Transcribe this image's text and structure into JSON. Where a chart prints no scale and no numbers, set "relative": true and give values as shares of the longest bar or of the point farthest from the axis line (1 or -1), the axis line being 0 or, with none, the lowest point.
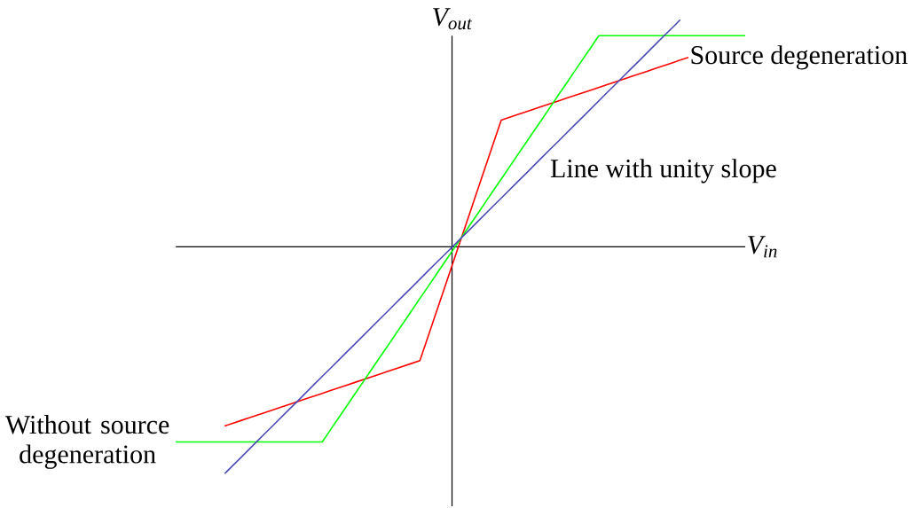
{
  "chart_data": {
    "type": "line",
    "relative": true,
    "xlabel": "V$_{in}$",
    "ylabel": "V$_{out}$",
    "categories": [
      null,
      null,
      null,
      null,
      null,
      null,
      null,
      null,
      null,
      null,
      null,
      null,
      null,
      null,
      null,
      null,
      null,
      null,
      null,
      null,
      null,
      null,
      null,
      null,
      null,
      null,
      null,
      null,
      null,
      null,
      null,
      null,
      null,
      null,
      null,
      null,
      null,
      null,
      null,
      null,
      null,
      null,
      null,
      null,
      null,
      null,
      null,
      null,
      null,
      null,
      null,
      null,
      null,
      null,
      null,
      null,
      null,
      null,
      null,
      null,
      null,
      null,
      null,
      null,
      null,
      null,
      null,
      null,
      null,
      null,
      null
    ],
    "series": [
      {
        "name": "Source degeneration",
        "color": "#ff0000",
        "values": [
          null,
          null,
          null,
          null,
          null,
          null,
          -0.79,
          -0.778,
          -0.766,
          -0.754,
          -0.742,
          -0.73,
          -0.718,
          -0.706,
          -0.694,
          -0.682,
          -0.67,
          -0.658,
          -0.646,
          -0.634,
          -0.622,
          -0.61,
          -0.598,
          -0.586,
          -0.574,
          -0.562,
          -0.55,
          -0.538,
          -0.526,
          -0.514,
          -0.502,
          -0.396,
          -0.29,
          -0.184,
          -0.078,
          0.028,
          0.134,
          0.24,
          0.346,
          0.452,
          0.558,
          0.57,
          0.582,
          0.594,
          0.606,
          0.618,
          0.63,
          0.642,
          0.654,
          0.666,
          0.678,
          0.69,
          0.702,
          0.714,
          0.726,
          0.738,
          0.75,
          0.762,
          0.774,
          0.786,
          0.798,
          0.81,
          0.822,
          0.834,
          null,
          null,
          null,
          null,
          null,
          null,
          null
        ]
      },
      {
        "name": "Without source degeneration",
        "color": "#00ff00",
        "values": [
          -0.86,
          -0.86,
          -0.86,
          -0.86,
          -0.86,
          -0.86,
          -0.86,
          -0.86,
          -0.86,
          -0.86,
          -0.86,
          -0.86,
          -0.86,
          -0.86,
          -0.86,
          -0.86,
          -0.86,
          -0.86,
          -0.86,
          -0.807,
          -0.755,
          -0.702,
          -0.649,
          -0.597,
          -0.544,
          -0.491,
          -0.439,
          -0.386,
          -0.334,
          -0.281,
          -0.228,
          -0.176,
          -0.123,
          -0.07,
          -0.018,
          0.035,
          0.088,
          0.14,
          0.193,
          0.246,
          0.298,
          0.351,
          0.404,
          0.456,
          0.509,
          0.561,
          0.614,
          0.667,
          0.719,
          0.772,
          0.825,
          0.877,
          0.93,
          0.93,
          0.93,
          0.93,
          0.93,
          0.93,
          0.93,
          0.93,
          0.93,
          0.93,
          0.93,
          0.93,
          0.93,
          0.93,
          0.93,
          0.93,
          0.93,
          0.93,
          0.93
        ]
      },
      {
        "name": "Line with unity slope",
        "color": "#4b4bb4",
        "values": [
          null,
          null,
          null,
          null,
          null,
          null,
          -1,
          -0.964,
          -0.929,
          -0.893,
          -0.857,
          -0.821,
          -0.786,
          -0.75,
          -0.714,
          -0.679,
          -0.643,
          -0.607,
          -0.571,
          -0.536,
          -0.5,
          -0.464,
          -0.429,
          -0.393,
          -0.357,
          -0.321,
          -0.286,
          -0.25,
          -0.214,
          -0.179,
          -0.143,
          -0.107,
          -0.071,
          -0.036,
          0,
          0.036,
          0.071,
          0.107,
          0.143,
          0.179,
          0.214,
          0.25,
          0.286,
          0.321,
          0.357,
          0.393,
          0.429,
          0.464,
          0.5,
          0.536,
          0.571,
          0.607,
          0.643,
          0.679,
          0.714,
          0.75,
          0.786,
          0.821,
          0.857,
          0.893,
          0.929,
          0.964,
          1,
          null,
          null,
          null,
          null,
          null,
          null,
          null,
          null
        ]
      }
    ]
  }
}
